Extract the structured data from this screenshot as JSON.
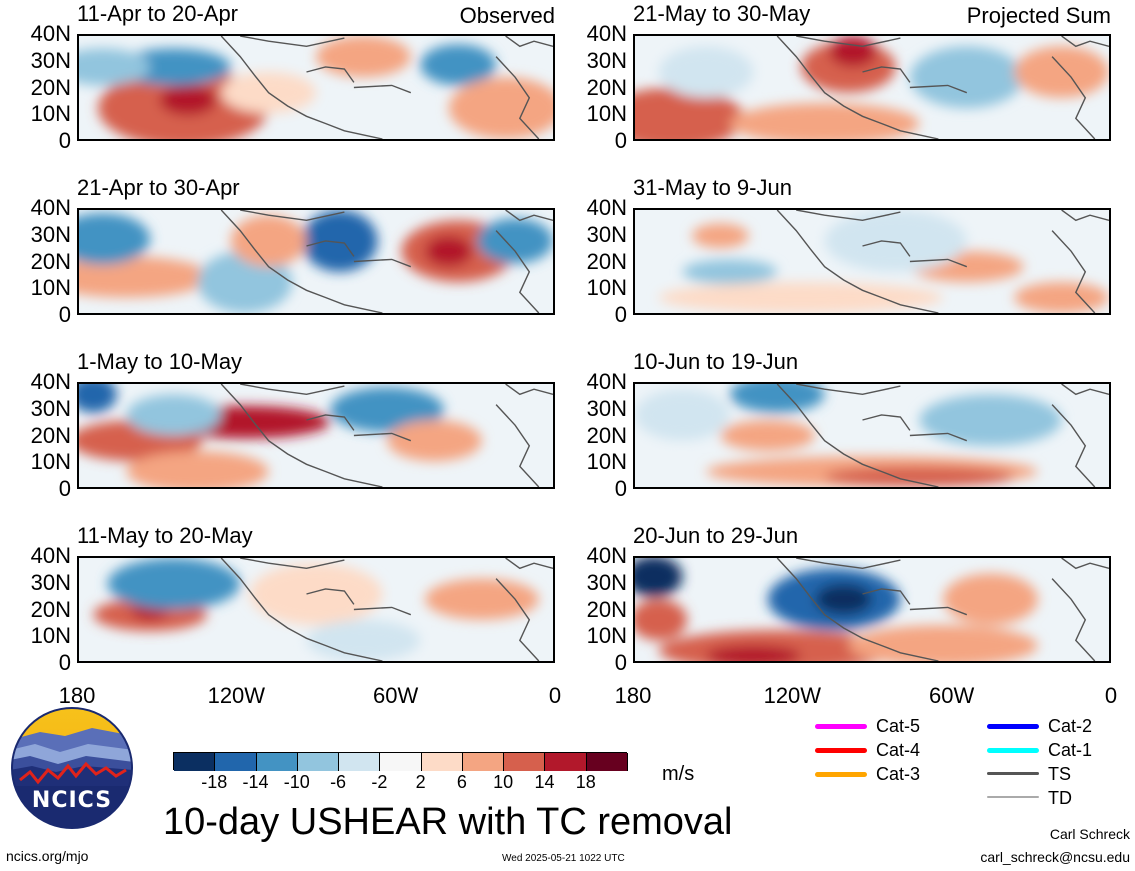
{
  "panels": [
    {
      "title": "11-Apr to 20-Apr",
      "tag": "Observed",
      "side": "left",
      "row": 0
    },
    {
      "title": "21-Apr to 30-Apr",
      "tag": "",
      "side": "left",
      "row": 1
    },
    {
      "title": "1-May to 10-May",
      "tag": "",
      "side": "left",
      "row": 2
    },
    {
      "title": "11-May to 20-May",
      "tag": "",
      "side": "left",
      "row": 3
    },
    {
      "title": "21-May to 30-May",
      "tag": "Projected Sum",
      "side": "right",
      "row": 0
    },
    {
      "title": "31-May to 9-Jun",
      "tag": "",
      "side": "right",
      "row": 1
    },
    {
      "title": "10-Jun to 19-Jun",
      "tag": "",
      "side": "right",
      "row": 2
    },
    {
      "title": "20-Jun to 29-Jun",
      "tag": "",
      "side": "right",
      "row": 3
    }
  ],
  "y_ticks": [
    "40N",
    "30N",
    "20N",
    "10N",
    "0"
  ],
  "x_ticks": [
    "180",
    "120W",
    "60W",
    "0"
  ],
  "colorbar": {
    "colors": [
      "#0b2f61",
      "#2166ac",
      "#4393c3",
      "#92c5de",
      "#d1e5f0",
      "#f7f7f7",
      "#fddbc7",
      "#f4a582",
      "#d6604d",
      "#b2182b",
      "#67001f"
    ],
    "labels": [
      "-18",
      "-14",
      "-10",
      "-6",
      "-2",
      "2",
      "6",
      "10",
      "14",
      "18"
    ],
    "unit": "m/s"
  },
  "legend": [
    {
      "label": "Cat-5",
      "color": "#ff00ff"
    },
    {
      "label": "Cat-4",
      "color": "#ff0000"
    },
    {
      "label": "Cat-3",
      "color": "#ffa500"
    },
    {
      "label": "Cat-2",
      "color": "#0000ff"
    },
    {
      "label": "Cat-1",
      "color": "#00ffff"
    },
    {
      "label": "TS",
      "color": "#555555"
    },
    {
      "label": "TD",
      "color": "#aaaaaa"
    }
  ],
  "logo_text": "NCICS",
  "main_title": "10-day USHEAR with TC removal",
  "footer": {
    "url": "ncics.org/mjo",
    "timestamp": "Wed 2025-05-21 1022 UTC",
    "author": "Carl Schreck",
    "email": "carl_schreck@ncsu.edu"
  }
}
